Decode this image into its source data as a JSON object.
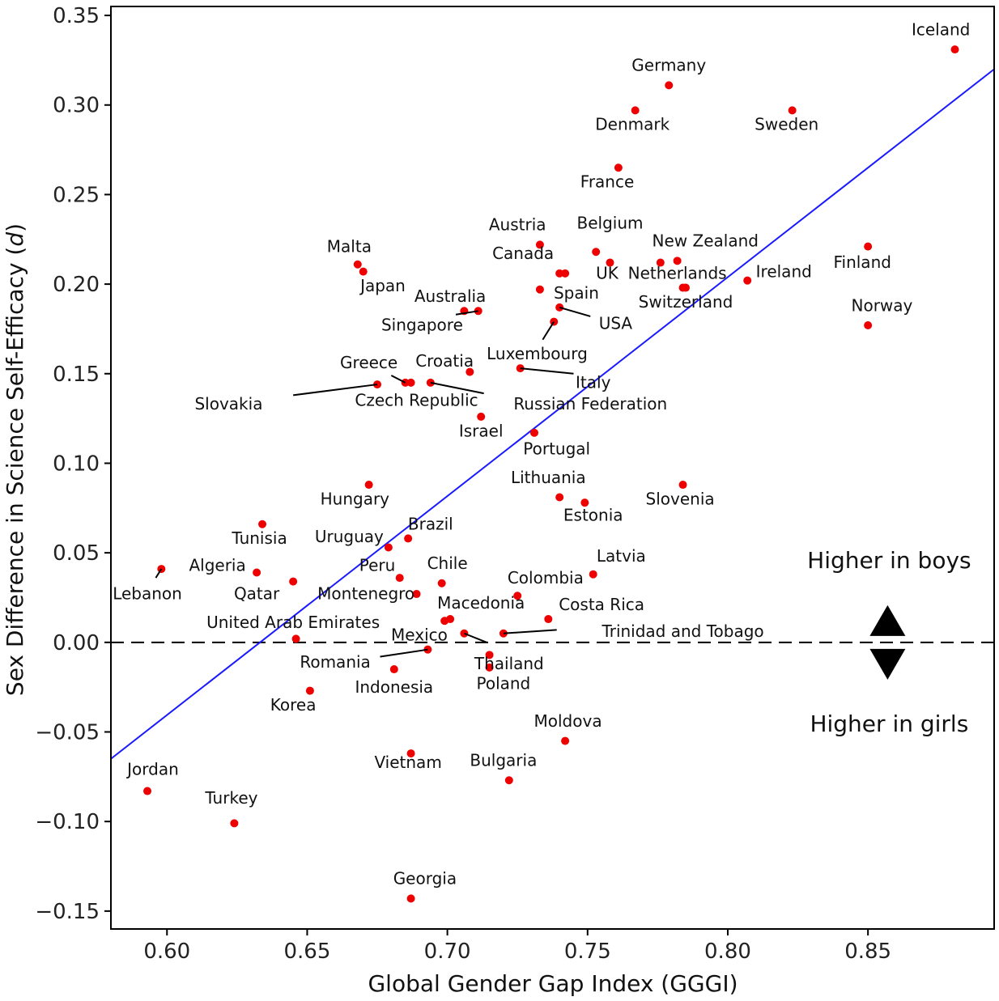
{
  "chart_data": {
    "type": "scatter",
    "title": "",
    "xlabel": "Global Gender Gap Index (GGGI)",
    "ylabel_main": "Sex Difference in Science Self-Efficacy (",
    "ylabel_italic": "d",
    "ylabel_end": ")",
    "xlim": [
      0.58,
      0.895
    ],
    "ylim": [
      -0.16,
      0.355
    ],
    "xticks": [
      0.6,
      0.65,
      0.7,
      0.75,
      0.8,
      0.85
    ],
    "xtick_labels": [
      "0.60",
      "0.65",
      "0.70",
      "0.75",
      "0.80",
      "0.85"
    ],
    "yticks": [
      -0.15,
      -0.1,
      -0.05,
      0.0,
      0.05,
      0.1,
      0.15,
      0.2,
      0.25,
      0.3,
      0.35
    ],
    "ytick_labels": [
      "−0.15",
      "−0.10",
      "−0.05",
      "0.00",
      "0.05",
      "0.10",
      "0.15",
      "0.20",
      "0.25",
      "0.30",
      "0.35"
    ],
    "point_color": "#ee0000",
    "line_color": "#1a1aff",
    "regression_line": {
      "x": [
        0.58,
        0.895
      ],
      "y": [
        -0.065,
        0.32
      ]
    },
    "reference_line_y": 0.0,
    "annotations": {
      "up_label": "Higher in boys",
      "down_label": "Higher in girls",
      "up_x": 0.857,
      "up_y": 0.0225,
      "down_x": 0.857,
      "down_y": -0.032,
      "up_text_y": 0.0225,
      "down_text_y": -0.038
    },
    "points": [
      {
        "name": "Iceland",
        "x": 0.881,
        "y": 0.331,
        "lx": 0.876,
        "ly": 0.339,
        "anchor": "middle"
      },
      {
        "name": "Germany",
        "x": 0.779,
        "y": 0.311,
        "lx": 0.779,
        "ly": 0.319,
        "anchor": "middle"
      },
      {
        "name": "Denmark",
        "x": 0.767,
        "y": 0.297,
        "lx": 0.766,
        "ly": 0.286,
        "anchor": "middle"
      },
      {
        "name": "Sweden",
        "x": 0.823,
        "y": 0.297,
        "lx": 0.821,
        "ly": 0.286,
        "anchor": "middle"
      },
      {
        "name": "France",
        "x": 0.761,
        "y": 0.265,
        "lx": 0.757,
        "ly": 0.254,
        "anchor": "middle"
      },
      {
        "name": "Austria",
        "x": 0.733,
        "y": 0.222,
        "lx": 0.725,
        "ly": 0.23,
        "anchor": "middle"
      },
      {
        "name": "Belgium",
        "x": 0.753,
        "y": 0.218,
        "lx": 0.758,
        "ly": 0.231,
        "anchor": "middle"
      },
      {
        "name": "Malta",
        "x": 0.668,
        "y": 0.211,
        "lx": 0.665,
        "ly": 0.218,
        "anchor": "middle"
      },
      {
        "name": "Japan",
        "x": 0.67,
        "y": 0.207,
        "lx": 0.677,
        "ly": 0.196,
        "anchor": "middle"
      },
      {
        "name": "Canada",
        "x": 0.74,
        "y": 0.206,
        "lx": 0.727,
        "ly": 0.214,
        "anchor": "middle"
      },
      {
        "name": "UK",
        "x": 0.742,
        "y": 0.206,
        "lx": 0.757,
        "ly": 0.203,
        "anchor": "middle"
      },
      {
        "name": "",
        "x": 0.758,
        "y": 0.212,
        "lx": 0.758,
        "ly": 0.212,
        "anchor": "middle"
      },
      {
        "name": "New Zealand",
        "x": 0.782,
        "y": 0.213,
        "lx": 0.792,
        "ly": 0.221,
        "anchor": "middle"
      },
      {
        "name": "",
        "x": 0.776,
        "y": 0.212,
        "lx": 0.776,
        "ly": 0.212,
        "anchor": "middle"
      },
      {
        "name": "Netherlands",
        "x": 0.785,
        "y": 0.198,
        "lx": 0.782,
        "ly": 0.203,
        "anchor": "middle"
      },
      {
        "name": "Finland",
        "x": 0.85,
        "y": 0.221,
        "lx": 0.848,
        "ly": 0.209,
        "anchor": "middle"
      },
      {
        "name": "Ireland",
        "x": 0.807,
        "y": 0.202,
        "lx": 0.82,
        "ly": 0.204,
        "anchor": "middle"
      },
      {
        "name": "Switzerland",
        "x": 0.784,
        "y": 0.198,
        "lx": 0.785,
        "ly": 0.187,
        "anchor": "middle"
      },
      {
        "name": "Spain",
        "x": 0.733,
        "y": 0.197,
        "lx": 0.746,
        "ly": 0.192,
        "anchor": "middle"
      },
      {
        "name": "Australia",
        "x": 0.711,
        "y": 0.185,
        "lx": 0.701,
        "ly": 0.19,
        "anchor": "middle"
      },
      {
        "name": "USA",
        "x": 0.74,
        "y": 0.187,
        "lx": 0.76,
        "ly": 0.175,
        "anchor": "middle"
      },
      {
        "name": "Norway",
        "x": 0.85,
        "y": 0.177,
        "lx": 0.855,
        "ly": 0.185,
        "anchor": "middle"
      },
      {
        "name": "Singapore",
        "x": 0.706,
        "y": 0.185,
        "lx": 0.691,
        "ly": 0.174,
        "anchor": "middle"
      },
      {
        "name": "Luxembourg",
        "x": 0.738,
        "y": 0.179,
        "lx": 0.732,
        "ly": 0.158,
        "anchor": "middle"
      },
      {
        "name": "Greece",
        "x": 0.685,
        "y": 0.145,
        "lx": 0.672,
        "ly": 0.153,
        "anchor": "middle"
      },
      {
        "name": "Croatia",
        "x": 0.708,
        "y": 0.151,
        "lx": 0.699,
        "ly": 0.154,
        "anchor": "middle"
      },
      {
        "name": "Italy",
        "x": 0.726,
        "y": 0.153,
        "lx": 0.752,
        "ly": 0.142,
        "anchor": "middle"
      },
      {
        "name": "Slovakia",
        "x": 0.675,
        "y": 0.144,
        "lx": 0.622,
        "ly": 0.13,
        "anchor": "middle"
      },
      {
        "name": "Czech Republic",
        "x": 0.687,
        "y": 0.145,
        "lx": 0.689,
        "ly": 0.132,
        "anchor": "middle"
      },
      {
        "name": "Russian Federation",
        "x": 0.694,
        "y": 0.145,
        "lx": 0.751,
        "ly": 0.13,
        "anchor": "middle"
      },
      {
        "name": "Israel",
        "x": 0.712,
        "y": 0.126,
        "lx": 0.712,
        "ly": 0.115,
        "anchor": "middle"
      },
      {
        "name": "Portugal",
        "x": 0.731,
        "y": 0.117,
        "lx": 0.739,
        "ly": 0.105,
        "anchor": "middle"
      },
      {
        "name": "Hungary",
        "x": 0.672,
        "y": 0.088,
        "lx": 0.667,
        "ly": 0.077,
        "anchor": "middle"
      },
      {
        "name": "Lithuania",
        "x": 0.74,
        "y": 0.081,
        "lx": 0.736,
        "ly": 0.089,
        "anchor": "middle"
      },
      {
        "name": "Estonia",
        "x": 0.749,
        "y": 0.078,
        "lx": 0.752,
        "ly": 0.068,
        "anchor": "middle"
      },
      {
        "name": "Slovenia",
        "x": 0.784,
        "y": 0.088,
        "lx": 0.783,
        "ly": 0.077,
        "anchor": "middle"
      },
      {
        "name": "Tunisia",
        "x": 0.634,
        "y": 0.066,
        "lx": 0.633,
        "ly": 0.055,
        "anchor": "middle"
      },
      {
        "name": "Brazil",
        "x": 0.686,
        "y": 0.058,
        "lx": 0.694,
        "ly": 0.063,
        "anchor": "middle"
      },
      {
        "name": "Uruguay",
        "x": 0.679,
        "y": 0.053,
        "lx": 0.665,
        "ly": 0.056,
        "anchor": "middle"
      },
      {
        "name": "Latvia",
        "x": 0.752,
        "y": 0.038,
        "lx": 0.762,
        "ly": 0.045,
        "anchor": "middle"
      },
      {
        "name": "Algeria",
        "x": 0.632,
        "y": 0.039,
        "lx": 0.618,
        "ly": 0.04,
        "anchor": "middle"
      },
      {
        "name": "Lebanon",
        "x": 0.598,
        "y": 0.041,
        "lx": 0.593,
        "ly": 0.024,
        "anchor": "middle"
      },
      {
        "name": "Peru",
        "x": 0.683,
        "y": 0.036,
        "lx": 0.675,
        "ly": 0.04,
        "anchor": "middle"
      },
      {
        "name": "Chile",
        "x": 0.698,
        "y": 0.033,
        "lx": 0.7,
        "ly": 0.041,
        "anchor": "middle"
      },
      {
        "name": "Colombia",
        "x": 0.725,
        "y": 0.026,
        "lx": 0.735,
        "ly": 0.033,
        "anchor": "middle"
      },
      {
        "name": "Qatar",
        "x": 0.645,
        "y": 0.034,
        "lx": 0.632,
        "ly": 0.024,
        "anchor": "middle"
      },
      {
        "name": "Montenegro",
        "x": 0.689,
        "y": 0.027,
        "lx": 0.671,
        "ly": 0.024,
        "anchor": "middle"
      },
      {
        "name": "Macedonia",
        "x": 0.699,
        "y": 0.012,
        "lx": 0.712,
        "ly": 0.019,
        "anchor": "middle"
      },
      {
        "name": "",
        "x": 0.701,
        "y": 0.013,
        "lx": 0.701,
        "ly": 0.013,
        "anchor": "middle"
      },
      {
        "name": "Costa Rica",
        "x": 0.736,
        "y": 0.013,
        "lx": 0.755,
        "ly": 0.018,
        "anchor": "middle"
      },
      {
        "name": "United Arab Emirates",
        "x": 0.646,
        "y": 0.002,
        "lx": 0.645,
        "ly": 0.008,
        "anchor": "middle"
      },
      {
        "name": "Mexico",
        "x": 0.706,
        "y": 0.005,
        "lx": 0.69,
        "ly": 0.001,
        "anchor": "middle"
      },
      {
        "name": "Trinidad and Tobago",
        "x": 0.72,
        "y": 0.005,
        "lx": 0.784,
        "ly": 0.003,
        "anchor": "middle"
      },
      {
        "name": "Thailand",
        "x": 0.715,
        "y": -0.007,
        "lx": 0.722,
        "ly": -0.015,
        "anchor": "middle"
      },
      {
        "name": "Romania",
        "x": 0.693,
        "y": -0.004,
        "lx": 0.66,
        "ly": -0.014,
        "anchor": "middle"
      },
      {
        "name": "Indonesia",
        "x": 0.681,
        "y": -0.015,
        "lx": 0.681,
        "ly": -0.028,
        "anchor": "middle"
      },
      {
        "name": "Poland",
        "x": 0.715,
        "y": -0.014,
        "lx": 0.72,
        "ly": -0.026,
        "anchor": "middle"
      },
      {
        "name": "Korea",
        "x": 0.651,
        "y": -0.027,
        "lx": 0.645,
        "ly": -0.038,
        "anchor": "middle"
      },
      {
        "name": "Moldova",
        "x": 0.742,
        "y": -0.055,
        "lx": 0.743,
        "ly": -0.047,
        "anchor": "middle"
      },
      {
        "name": "Vietnam",
        "x": 0.687,
        "y": -0.062,
        "lx": 0.686,
        "ly": -0.07,
        "anchor": "middle"
      },
      {
        "name": "Bulgaria",
        "x": 0.722,
        "y": -0.077,
        "lx": 0.72,
        "ly": -0.069,
        "anchor": "middle"
      },
      {
        "name": "Jordan",
        "x": 0.593,
        "y": -0.083,
        "lx": 0.595,
        "ly": -0.074,
        "anchor": "middle"
      },
      {
        "name": "Turkey",
        "x": 0.624,
        "y": -0.101,
        "lx": 0.623,
        "ly": -0.09,
        "anchor": "middle"
      },
      {
        "name": "Georgia",
        "x": 0.687,
        "y": -0.143,
        "lx": 0.692,
        "ly": -0.135,
        "anchor": "middle"
      }
    ],
    "leader_lines": [
      {
        "from": "Lebanon",
        "x1": 0.596,
        "y1": 0.036,
        "x2": 0.598,
        "y2": 0.041
      },
      {
        "from": "USA",
        "x1": 0.74,
        "y1": 0.187,
        "x2": 0.751,
        "y2": 0.182
      },
      {
        "from": "Luxembourg",
        "x1": 0.734,
        "y1": 0.169,
        "x2": 0.738,
        "y2": 0.179
      },
      {
        "from": "Italy",
        "x1": 0.726,
        "y1": 0.153,
        "x2": 0.745,
        "y2": 0.15
      },
      {
        "from": "Slovakia",
        "x1": 0.645,
        "y1": 0.138,
        "x2": 0.675,
        "y2": 0.144
      },
      {
        "from": "Greece",
        "x1": 0.68,
        "y1": 0.149,
        "x2": 0.685,
        "y2": 0.145
      },
      {
        "from": "Russian Federation",
        "x1": 0.694,
        "y1": 0.145,
        "x2": 0.713,
        "y2": 0.139
      },
      {
        "from": "Australia",
        "x1": 0.703,
        "y1": 0.183,
        "x2": 0.711,
        "y2": 0.185
      },
      {
        "from": "Mexico",
        "x1": 0.706,
        "y1": 0.005,
        "x2": 0.714,
        "y2": 0.0
      },
      {
        "from": "Romania",
        "x1": 0.676,
        "y1": -0.008,
        "x2": 0.693,
        "y2": -0.004
      },
      {
        "from": "Trinidad and Tobago",
        "x1": 0.72,
        "y1": 0.005,
        "x2": 0.739,
        "y2": 0.007
      }
    ]
  }
}
